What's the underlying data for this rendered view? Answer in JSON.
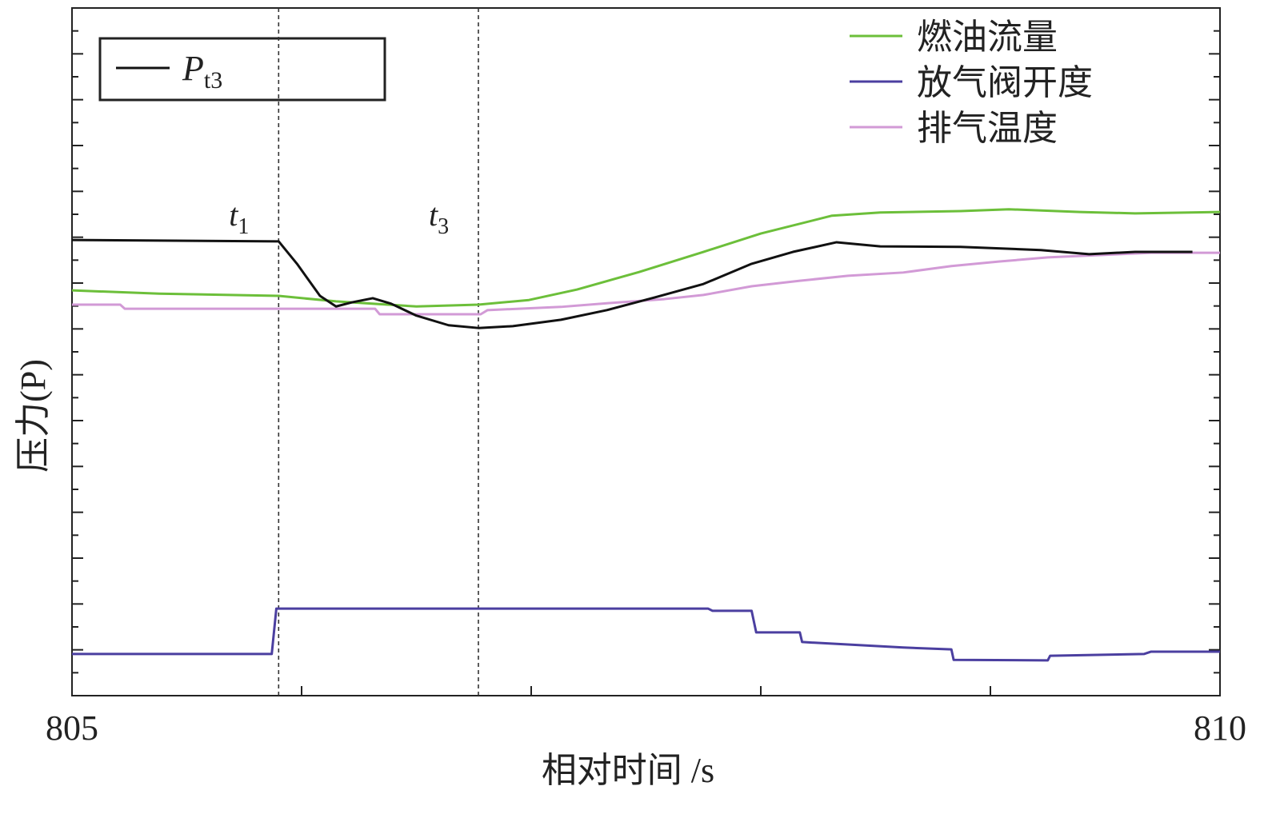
{
  "chart_data": {
    "type": "line",
    "x_label": "相对时间 /s",
    "y_label": "压力(P)",
    "xlim": [
      805,
      810
    ],
    "ylim": [
      0,
      15
    ],
    "xticks": [
      805,
      810
    ],
    "annotations": [
      {
        "text": "t",
        "subscript": "1",
        "x": 805.9
      },
      {
        "text": "t",
        "subscript": "3",
        "x": 806.77
      }
    ],
    "series": [
      {
        "name": "P",
        "subscript": "t3",
        "color": "#111111",
        "x": [
          805.0,
          805.9,
          805.98,
          806.08,
          806.15,
          806.22,
          806.31,
          806.39,
          806.5,
          806.64,
          806.77,
          806.92,
          807.13,
          807.33,
          807.54,
          807.75,
          807.96,
          808.14,
          808.33,
          808.52,
          808.87,
          809.22,
          809.43,
          809.63,
          809.88
        ],
        "values": [
          9.94,
          9.91,
          9.42,
          8.72,
          8.49,
          8.58,
          8.67,
          8.55,
          8.29,
          8.08,
          8.02,
          8.06,
          8.2,
          8.41,
          8.69,
          8.98,
          9.42,
          9.68,
          9.89,
          9.8,
          9.79,
          9.72,
          9.63,
          9.68,
          9.68
        ]
      },
      {
        "name": "燃油流量",
        "color": "#6cbf3a",
        "x": [
          805.0,
          805.38,
          805.9,
          806.15,
          806.5,
          806.77,
          806.99,
          807.2,
          807.47,
          807.75,
          808.0,
          808.31,
          808.52,
          808.87,
          809.08,
          809.39,
          809.63,
          810.0
        ],
        "values": [
          8.84,
          8.77,
          8.72,
          8.6,
          8.49,
          8.53,
          8.63,
          8.86,
          9.24,
          9.68,
          10.08,
          10.47,
          10.54,
          10.57,
          10.61,
          10.55,
          10.52,
          10.55
        ]
      },
      {
        "name": "放气阀开度",
        "color": "#4b3fa0",
        "x": [
          805.0,
          805.87,
          805.89,
          807.77,
          807.79,
          807.96,
          807.98,
          808.17,
          808.18,
          808.62,
          808.83,
          808.84,
          809.25,
          809.26,
          809.67,
          809.7,
          810.0
        ],
        "values": [
          0.91,
          0.91,
          1.9,
          1.9,
          1.85,
          1.85,
          1.38,
          1.38,
          1.17,
          1.05,
          1.01,
          0.78,
          0.77,
          0.87,
          0.91,
          0.96,
          0.96
        ]
      },
      {
        "name": "排气温度",
        "color": "#d29ad6",
        "x": [
          805.0,
          805.21,
          805.23,
          806.32,
          806.34,
          806.78,
          806.81,
          807.13,
          807.33,
          807.58,
          807.75,
          807.96,
          808.17,
          808.38,
          808.62,
          808.83,
          809.04,
          809.25,
          809.7,
          810.0
        ],
        "values": [
          8.53,
          8.53,
          8.44,
          8.44,
          8.32,
          8.32,
          8.41,
          8.48,
          8.56,
          8.65,
          8.74,
          8.93,
          9.05,
          9.16,
          9.23,
          9.37,
          9.47,
          9.56,
          9.66,
          9.66
        ]
      }
    ]
  }
}
